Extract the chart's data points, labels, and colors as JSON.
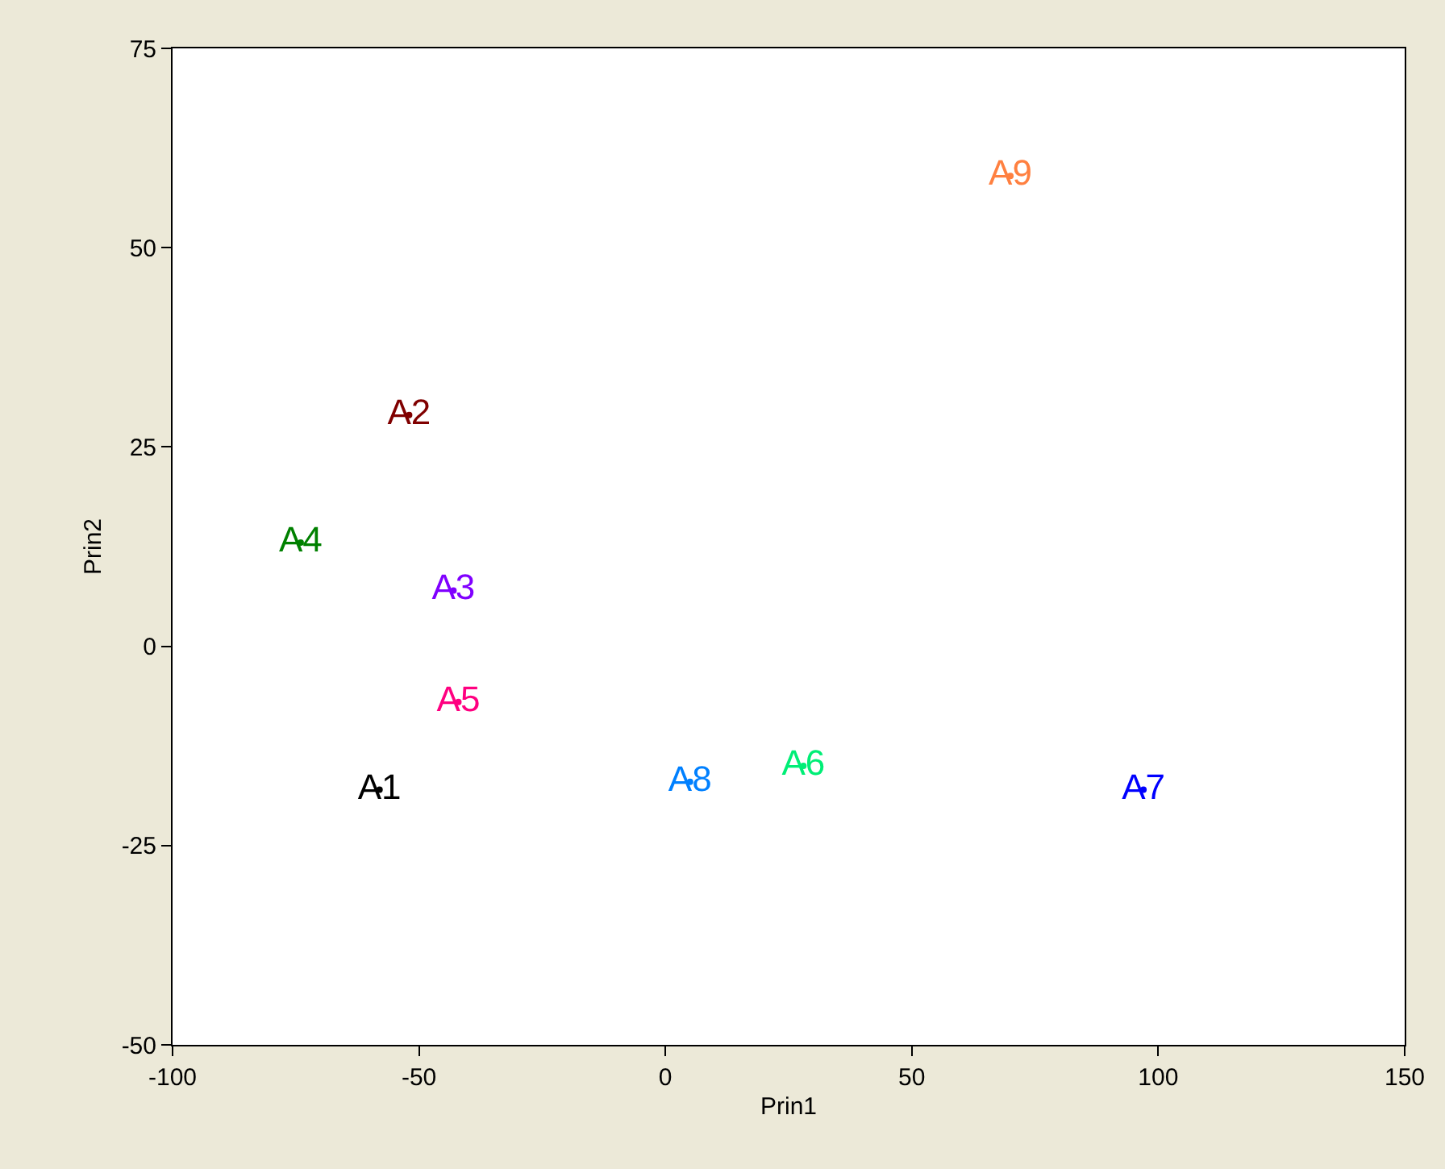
{
  "chart_data": {
    "type": "scatter",
    "xlabel": "Prin1",
    "ylabel": "Prin2",
    "legend": false,
    "xlim": [
      -100,
      150
    ],
    "xticks": [
      -100,
      -50,
      0,
      50,
      100,
      150
    ],
    "ylim": [
      -50,
      75
    ],
    "yticks": [
      -50,
      -25,
      0,
      25,
      50,
      75
    ],
    "series": [
      {
        "name": "A1",
        "color": "#000000",
        "x": [
          -58
        ],
        "values": [
          -18
        ]
      },
      {
        "name": "A2",
        "color": "#800000",
        "x": [
          -52
        ],
        "values": [
          29
        ]
      },
      {
        "name": "A3",
        "color": "#8000ff",
        "x": [
          -43
        ],
        "values": [
          7
        ]
      },
      {
        "name": "A4",
        "color": "#008000",
        "x": [
          -74
        ],
        "values": [
          13
        ]
      },
      {
        "name": "A5",
        "color": "#ff0080",
        "x": [
          -42
        ],
        "values": [
          -7
        ]
      },
      {
        "name": "A6",
        "color": "#00ee76",
        "x": [
          28
        ],
        "values": [
          -15
        ]
      },
      {
        "name": "A7",
        "color": "#0000ff",
        "x": [
          97
        ],
        "values": [
          -18
        ]
      },
      {
        "name": "A8",
        "color": "#0080ff",
        "x": [
          5
        ],
        "values": [
          -17
        ]
      },
      {
        "name": "A9",
        "color": "#ff8040",
        "x": [
          70
        ],
        "values": [
          59
        ]
      }
    ]
  }
}
